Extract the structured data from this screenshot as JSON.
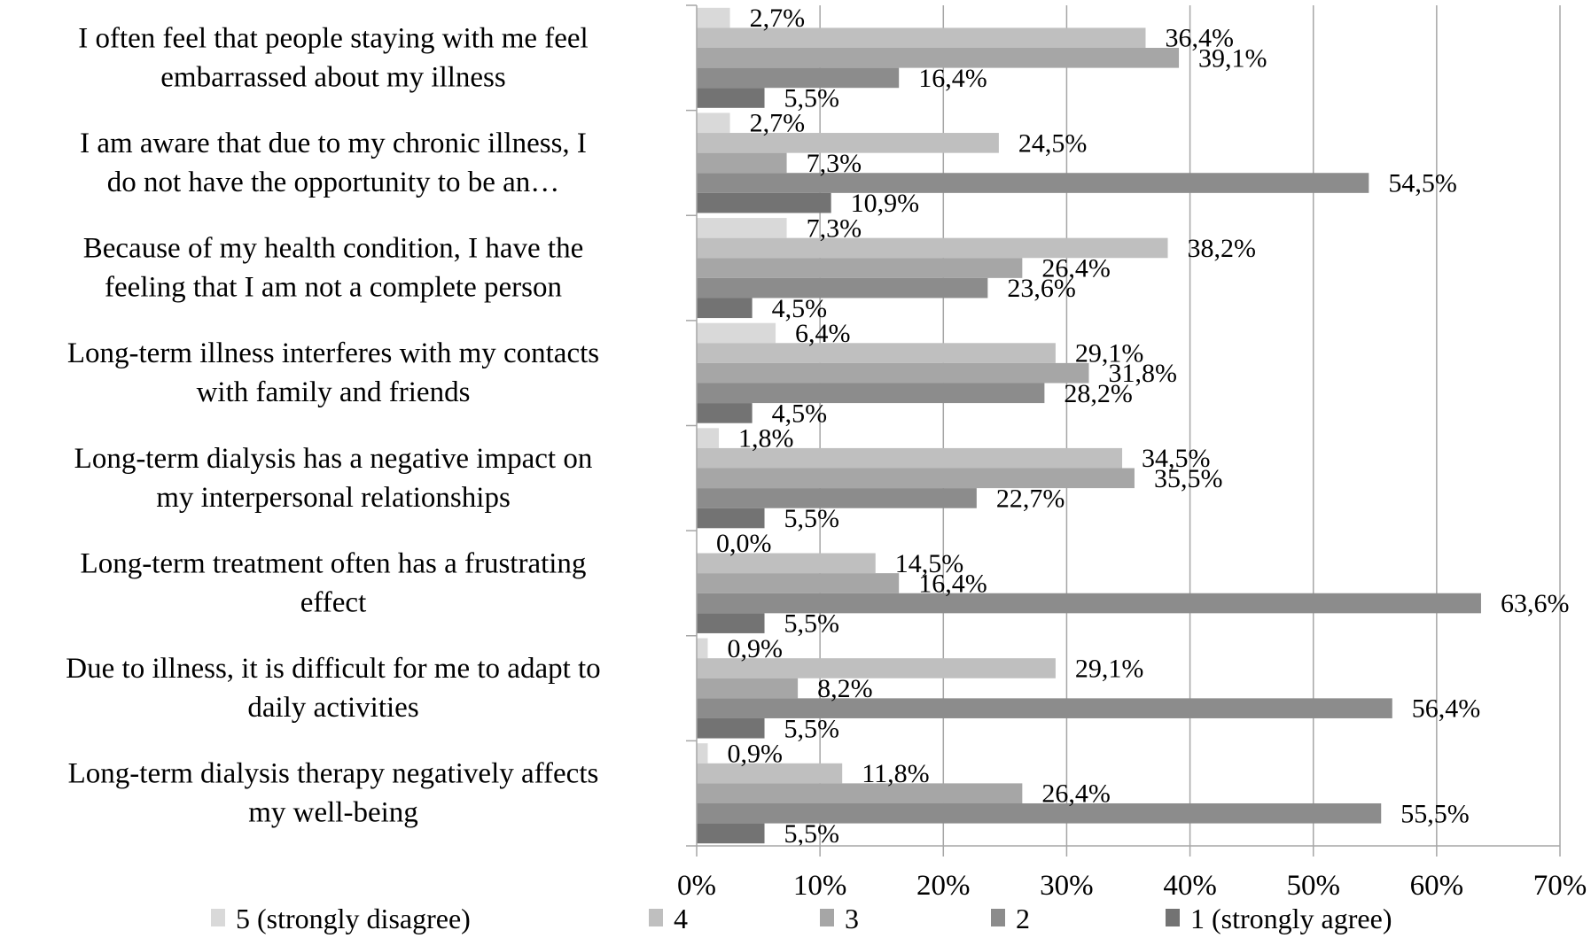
{
  "chart_data": {
    "type": "bar",
    "orientation": "horizontal",
    "title": "",
    "xlabel": "",
    "ylabel": "",
    "xlim": [
      0,
      70
    ],
    "x_ticks": [
      "0%",
      "10%",
      "20%",
      "30%",
      "40%",
      "50%",
      "60%",
      "70%"
    ],
    "grid": true,
    "legend_position": "bottom",
    "categories": [
      [
        "I often feel that people staying with me feel",
        "embarrassed about my illness"
      ],
      [
        "I am aware that due to my chronic illness, I",
        "do not have the opportunity to be an…"
      ],
      [
        "Because of my health condition, I have the",
        "feeling that I am not a complete person"
      ],
      [
        "Long-term illness interferes with my contacts",
        "with family and friends"
      ],
      [
        "Long-term dialysis has a negative impact on",
        "my interpersonal relationships"
      ],
      [
        "Long-term treatment often has a frustrating",
        "effect"
      ],
      [
        "Due to illness, it is difficult for me to adapt to",
        "daily activities"
      ],
      [
        "Long-term dialysis therapy negatively affects",
        "my well-being"
      ]
    ],
    "series": [
      {
        "name": "5 (strongly disagree)",
        "color": "#d9d9d9",
        "values": [
          2.7,
          2.7,
          7.3,
          6.4,
          1.8,
          0.0,
          0.9,
          0.9
        ],
        "labels": [
          "2,7%",
          "2,7%",
          "7,3%",
          "6,4%",
          "1,8%",
          "0,0%",
          "0,9%",
          "0,9%"
        ]
      },
      {
        "name": "4",
        "color": "#bfbfbf",
        "values": [
          36.4,
          24.5,
          38.2,
          29.1,
          34.5,
          14.5,
          29.1,
          11.8
        ],
        "labels": [
          "36,4%",
          "24,5%",
          "38,2%",
          "29,1%",
          "34,5%",
          "14,5%",
          "29,1%",
          "11,8%"
        ]
      },
      {
        "name": "3",
        "color": "#a6a6a6",
        "values": [
          39.1,
          7.3,
          26.4,
          31.8,
          35.5,
          16.4,
          8.2,
          26.4
        ],
        "labels": [
          "39,1%",
          "7,3%",
          "26,4%",
          "31,8%",
          "35,5%",
          "16,4%",
          "8,2%",
          "26,4%"
        ]
      },
      {
        "name": "2",
        "color": "#8c8c8c",
        "values": [
          16.4,
          54.5,
          23.6,
          28.2,
          22.7,
          63.6,
          56.4,
          55.5
        ],
        "labels": [
          "16,4%",
          "54,5%",
          "23,6%",
          "28,2%",
          "22,7%",
          "63,6%",
          "56,4%",
          "55,5%"
        ]
      },
      {
        "name": "1 (strongly agree)",
        "color": "#737373",
        "values": [
          5.5,
          10.9,
          4.5,
          4.5,
          5.5,
          5.5,
          5.5,
          5.5
        ],
        "labels": [
          "5,5%",
          "10,9%",
          "4,5%",
          "4,5%",
          "5,5%",
          "5,5%",
          "5,5%",
          "5,5%"
        ]
      }
    ]
  }
}
